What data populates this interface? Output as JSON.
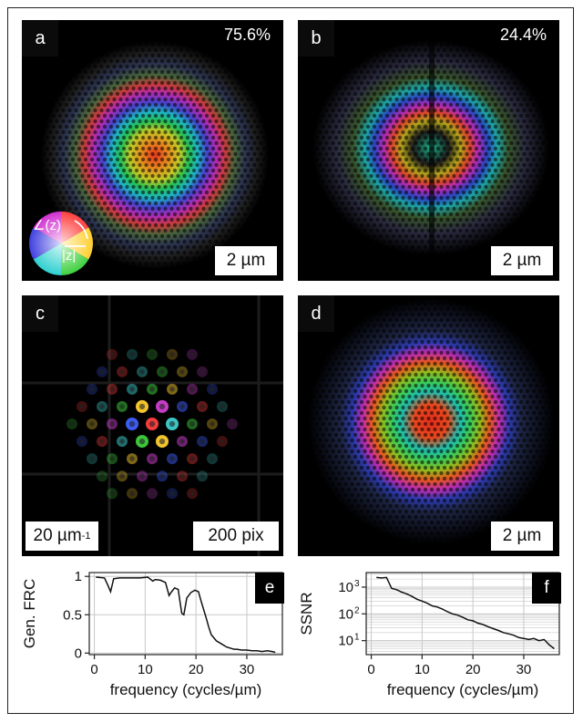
{
  "figure": {
    "panels": [
      {
        "id": "a",
        "letter": "a",
        "percent": "75.6%",
        "scale": "2 µm"
      },
      {
        "id": "b",
        "letter": "b",
        "percent": "24.4%",
        "scale": "2 µm"
      },
      {
        "id": "c",
        "letter": "c",
        "scale_left": "20 µm",
        "scale_left_sup": "-1",
        "scale_right": "200 pix"
      },
      {
        "id": "d",
        "letter": "d",
        "scale": "2 µm"
      }
    ],
    "colorwheel": {
      "angle_label": "∠(z)",
      "magnitude_label": "|z|"
    }
  },
  "chart_data": [
    {
      "type": "line",
      "panel": "e",
      "xlabel": "frequency (cycles/µm)",
      "ylabel": "Gen. FRC",
      "xlim": [
        -1,
        37
      ],
      "ylim": [
        -0.02,
        1.05
      ],
      "xticks": [
        0,
        10,
        20,
        30
      ],
      "yticks": [
        0,
        0.5,
        1
      ],
      "ytick_labels": [
        "0",
        "0.5",
        "1"
      ],
      "grid": true,
      "x": [
        0.3,
        2,
        2.7,
        3.2,
        3.8,
        5,
        7,
        9,
        10.5,
        11.5,
        12,
        13,
        14,
        14.7,
        15.2,
        15.8,
        16.5,
        17.2,
        17.6,
        18.2,
        19,
        19.8,
        20.5,
        21,
        22,
        22.5,
        23,
        24,
        25,
        26,
        27,
        27.5,
        28,
        29,
        30,
        31,
        32,
        33,
        34,
        35,
        35.6
      ],
      "y": [
        0.99,
        0.98,
        0.88,
        0.8,
        0.97,
        0.98,
        0.98,
        0.98,
        0.99,
        0.94,
        0.96,
        0.95,
        0.92,
        0.75,
        0.8,
        0.85,
        0.83,
        0.52,
        0.5,
        0.72,
        0.79,
        0.82,
        0.8,
        0.68,
        0.46,
        0.34,
        0.24,
        0.16,
        0.12,
        0.08,
        0.06,
        0.05,
        0.05,
        0.04,
        0.04,
        0.03,
        0.03,
        0.02,
        0.03,
        0.02,
        0.01
      ]
    },
    {
      "type": "line",
      "panel": "f",
      "xlabel": "frequency (cycles/µm)",
      "ylabel": "SSNR",
      "log_y": true,
      "xlim": [
        -1,
        37
      ],
      "ylim": [
        3,
        3500
      ],
      "xticks": [
        0,
        10,
        20,
        30
      ],
      "yticks": [
        10,
        100,
        1000
      ],
      "ytick_labels": [
        "10",
        "10",
        "10"
      ],
      "ytick_sup": [
        "1",
        "2",
        "3"
      ],
      "grid": true,
      "x": [
        1,
        2,
        3,
        4,
        5,
        6,
        7,
        8,
        9,
        10,
        11,
        12,
        13,
        14,
        15,
        16,
        17,
        18,
        19,
        20,
        21,
        22,
        23,
        24,
        25,
        26,
        27,
        28,
        29,
        30,
        31,
        32,
        33,
        34,
        35,
        36
      ],
      "y": [
        2300,
        2200,
        2300,
        900,
        800,
        650,
        560,
        450,
        350,
        300,
        250,
        200,
        180,
        150,
        120,
        100,
        90,
        75,
        60,
        55,
        45,
        40,
        33,
        28,
        24,
        20,
        18,
        16,
        13,
        12,
        11,
        12,
        10,
        11,
        7,
        5
      ]
    }
  ],
  "plot_labels": {
    "e": "e",
    "f": "f"
  }
}
